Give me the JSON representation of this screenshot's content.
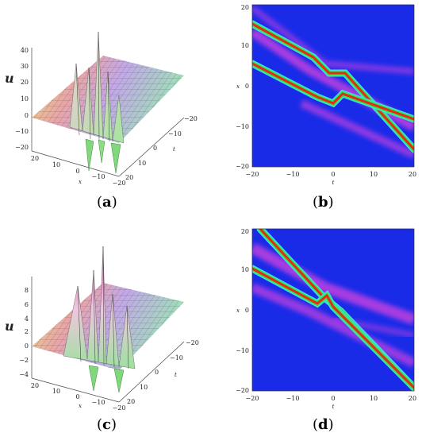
{
  "figure": {
    "panels": [
      {
        "id": "a",
        "caption_open": "(",
        "caption_letter": "a",
        "caption_close": ")",
        "type": "3d-surface",
        "zlabel": "u",
        "z_ticks": [
          "40",
          "30",
          "20",
          "10",
          "0",
          "−10",
          "−20"
        ],
        "x_ticks": [
          "20",
          "10",
          "0",
          "−10",
          "−20"
        ],
        "x_axis_letter": "x",
        "t_ticks": [
          "−20",
          "−10",
          "0",
          "10",
          "20"
        ],
        "t_axis_letter": "t"
      },
      {
        "id": "b",
        "caption_open": "(",
        "caption_letter": "b",
        "caption_close": ")",
        "type": "density",
        "ylabel": "x",
        "xlabel": "t",
        "x_ticks": [
          "−20",
          "−10",
          "0",
          "10",
          "20"
        ],
        "y_ticks": [
          "20",
          "10",
          "0",
          "−10",
          "−20"
        ],
        "xlim": [
          -20,
          20
        ],
        "ylim": [
          -20,
          20
        ]
      },
      {
        "id": "c",
        "caption_open": "(",
        "caption_letter": "c",
        "caption_close": ")",
        "type": "3d-surface",
        "zlabel": "u",
        "z_ticks": [
          "8",
          "6",
          "4",
          "2",
          "0",
          "−2",
          "−4"
        ],
        "x_ticks": [
          "20",
          "10",
          "0",
          "−10",
          "−20"
        ],
        "x_axis_letter": "x",
        "t_ticks": [
          "−20",
          "−10",
          "0",
          "10",
          "20"
        ],
        "t_axis_letter": "t"
      },
      {
        "id": "d",
        "caption_open": "(",
        "caption_letter": "d",
        "caption_close": ")",
        "type": "density",
        "ylabel": "x",
        "xlabel": "t",
        "x_ticks": [
          "−20",
          "−10",
          "0",
          "10",
          "20"
        ],
        "y_ticks": [
          "20",
          "10",
          "0",
          "−10",
          "−20"
        ],
        "xlim": [
          -20,
          20
        ],
        "ylim": [
          -20,
          20
        ]
      }
    ],
    "colors": {
      "background_blue": "#1a2be8",
      "ridge_red": "#e52a18",
      "ridge_green": "#2ee84a",
      "halo_cyan": "#3fe0d8",
      "shadow_magenta": "#c040e0"
    }
  }
}
